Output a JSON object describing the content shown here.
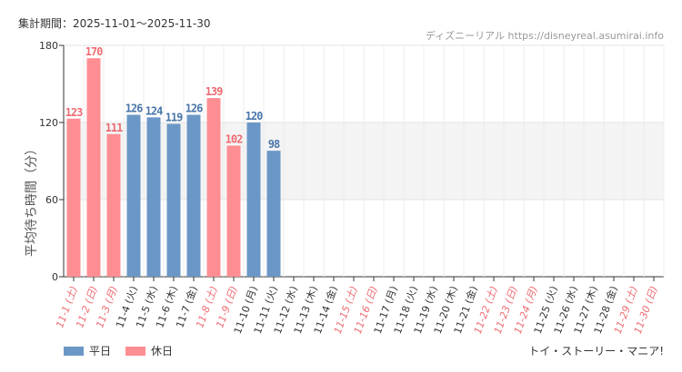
{
  "header": {
    "period": "集計期間：2025-11-01～2025-11-30",
    "source": "ディズニーリアル https://disneyreal.asumirai.info"
  },
  "footer": {
    "attraction": "トイ・ストーリー・マニア!"
  },
  "chart_data": {
    "type": "bar",
    "ylabel": "平均待ち時間（分）",
    "ylim": [
      0,
      180
    ],
    "yticks": [
      0,
      60,
      120,
      180
    ],
    "grid": true,
    "shaded_band": [
      60,
      120
    ],
    "legend_position": "bottom-left",
    "legend": [
      {
        "name": "平日",
        "color": "#6b97c6"
      },
      {
        "name": "休日",
        "color": "#ff8e93"
      }
    ],
    "colors": {
      "weekday": "#6b97c6",
      "holiday": "#ff8e93",
      "weekday_label": "#4a77aa",
      "holiday_label": "#ee6b72",
      "holiday_tick": "#ee6b72",
      "weekday_tick": "#333333"
    },
    "categories": [
      "11-1 (土)",
      "11-2 (日)",
      "11-3 (月)",
      "11-4 (火)",
      "11-5 (水)",
      "11-6 (木)",
      "11-7 (金)",
      "11-8 (土)",
      "11-9 (日)",
      "11-10 (月)",
      "11-11 (火)",
      "11-12 (水)",
      "11-13 (木)",
      "11-14 (金)",
      "11-15 (土)",
      "11-16 (日)",
      "11-17 (月)",
      "11-18 (火)",
      "11-19 (水)",
      "11-20 (木)",
      "11-21 (金)",
      "11-22 (土)",
      "11-23 (日)",
      "11-24 (月)",
      "11-25 (火)",
      "11-26 (水)",
      "11-27 (木)",
      "11-28 (金)",
      "11-29 (土)",
      "11-30 (日)"
    ],
    "holiday": [
      true,
      true,
      true,
      false,
      false,
      false,
      false,
      true,
      true,
      false,
      false,
      false,
      false,
      false,
      true,
      true,
      false,
      false,
      false,
      false,
      false,
      true,
      true,
      true,
      false,
      false,
      false,
      false,
      true,
      true
    ],
    "values": [
      123,
      170,
      111,
      126,
      124,
      119,
      126,
      139,
      102,
      120,
      98,
      null,
      null,
      null,
      null,
      null,
      null,
      null,
      null,
      null,
      null,
      null,
      null,
      null,
      null,
      null,
      null,
      null,
      null,
      null
    ]
  }
}
